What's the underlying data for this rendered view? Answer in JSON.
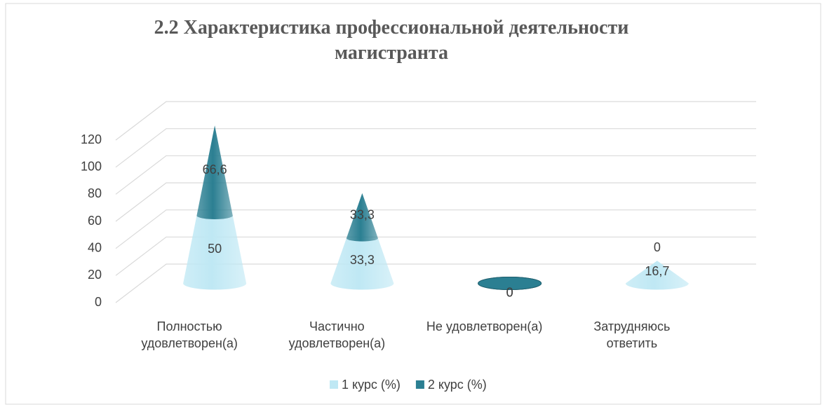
{
  "chart_data": {
    "type": "cone3d",
    "title": "2.2 Характеристика профессиональной деятельности магистранта",
    "categories": [
      "Полностью удовлетворен(а)",
      "Частично удовлетворен(а)",
      "Не удовлетворен(а)",
      "Затрудняюсь ответить"
    ],
    "series": [
      {
        "name": "1 курс (%)",
        "color": "#bfe8f4",
        "values": [
          50,
          33.3,
          0,
          16.7
        ],
        "value_labels": [
          "50",
          "33,3",
          "0",
          "16,7"
        ]
      },
      {
        "name": "2 курс (%)",
        "color": "#2b7f92",
        "values": [
          66.6,
          33.3,
          0,
          0
        ],
        "value_labels": [
          "66,6",
          "33,3",
          "0",
          "0"
        ]
      }
    ],
    "ylim": [
      0,
      120
    ],
    "yticks": [
      0,
      20,
      40,
      60,
      80,
      100,
      120
    ],
    "grid": true,
    "stacked": true,
    "legend": "bottom"
  }
}
